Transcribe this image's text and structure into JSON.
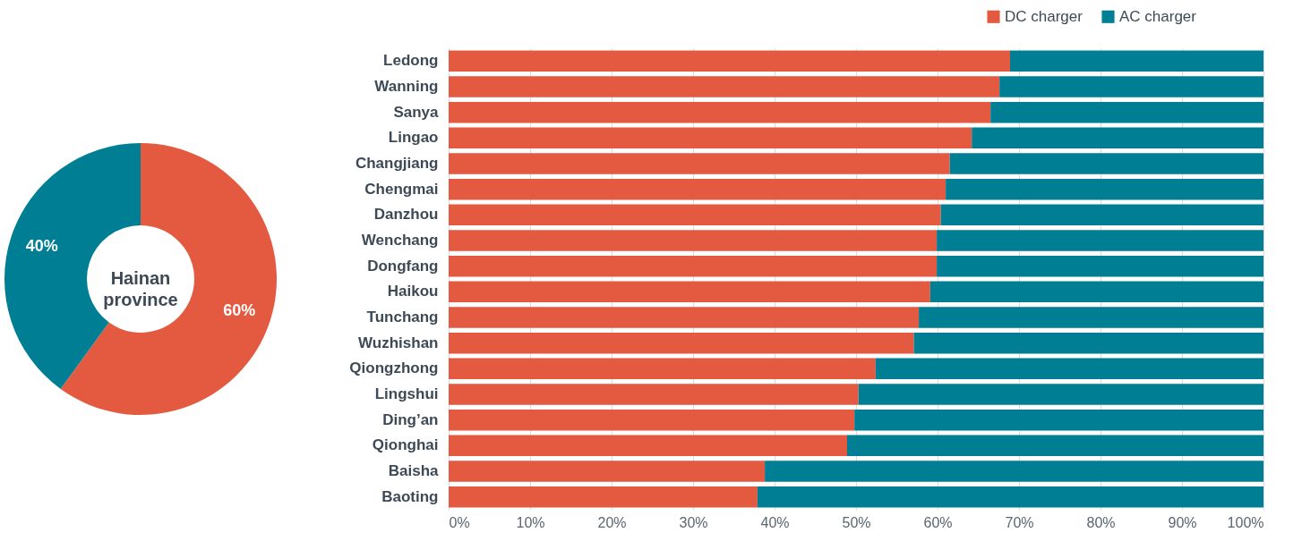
{
  "chart_data": [
    {
      "type": "donut",
      "title": "Hainan province",
      "values": [
        60,
        40
      ],
      "colors": [
        "#e35a40",
        "#007f94"
      ],
      "value_labels": [
        "60%",
        "40%"
      ]
    },
    {
      "type": "bar",
      "orientation": "horizontal",
      "stacked": true,
      "legend": "top right",
      "grid": "x",
      "categories": [
        "Ledong",
        "Wanning",
        "Sanya",
        "Lingao",
        "Changjiang",
        "Chengmai",
        "Danzhou",
        "Wenchang",
        "Dongfang",
        "Haikou",
        "Tunchang",
        "Wuzhishan",
        "Qiongzhong",
        "Lingshui",
        "Ding’an",
        "Qionghai",
        "Baisha",
        "Baoting"
      ],
      "series": [
        {
          "name": "DC charger",
          "color": "#e35a40",
          "values": [
            68.9,
            67.6,
            66.5,
            64.2,
            61.5,
            61.0,
            60.4,
            59.9,
            59.9,
            59.1,
            57.7,
            57.1,
            52.4,
            50.3,
            49.8,
            48.9,
            38.8,
            37.9
          ]
        },
        {
          "name": "AC charger",
          "color": "#007f94",
          "values": [
            31.1,
            32.4,
            33.5,
            35.8,
            38.5,
            39.0,
            39.6,
            40.1,
            40.1,
            40.9,
            42.3,
            42.9,
            47.6,
            49.7,
            50.2,
            51.1,
            61.2,
            62.1
          ]
        }
      ],
      "xlim": [
        0,
        100
      ],
      "xticks": [
        {
          "value": 0,
          "label": "0%"
        },
        {
          "value": 10,
          "label": "10%"
        },
        {
          "value": 20,
          "label": "20%"
        },
        {
          "value": 30,
          "label": "30%"
        },
        {
          "value": 40,
          "label": "40%"
        },
        {
          "value": 50,
          "label": "50%"
        },
        {
          "value": 60,
          "label": "60%"
        },
        {
          "value": 70,
          "label": "70%"
        },
        {
          "value": 80,
          "label": "80%"
        },
        {
          "value": 90,
          "label": "90%"
        },
        {
          "value": 100,
          "label": "100%"
        }
      ]
    }
  ]
}
